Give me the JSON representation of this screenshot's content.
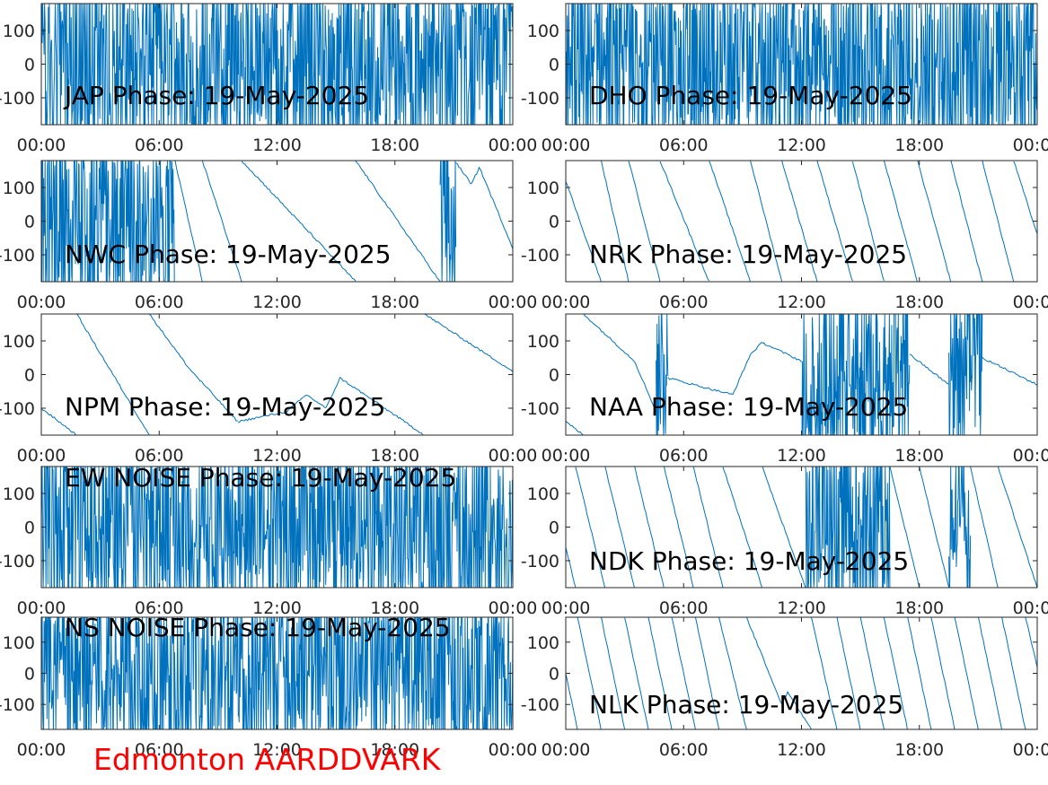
{
  "colors": {
    "line": "#0072bd",
    "axis": "#262626",
    "footer": "#ff0000"
  },
  "footer_label": "Edmonton AARDDVARK",
  "chart_data": [
    {
      "type": "line",
      "title": "JAP Phase: 19-May-2025",
      "xticks": [
        "00:00",
        "06:00",
        "12:00",
        "18:00",
        "00:00"
      ],
      "yticks": [
        "100",
        "0",
        "-100"
      ],
      "xlim": [
        0,
        24
      ],
      "ylim": [
        -180,
        180
      ],
      "segments": [
        {
          "x0": 0,
          "x1": 24,
          "mode": "noise",
          "y0": 0,
          "y1": 0,
          "amp": 180
        }
      ]
    },
    {
      "type": "line",
      "title": "DHO Phase: 19-May-2025",
      "xticks": [
        "00:00",
        "06:00",
        "12:00",
        "18:00",
        "00:00"
      ],
      "yticks": [
        "100",
        "0",
        "-100"
      ],
      "xlim": [
        0,
        24
      ],
      "ylim": [
        -180,
        180
      ],
      "segments": [
        {
          "x0": 0,
          "x1": 24,
          "mode": "noise",
          "y0": 0,
          "y1": 0,
          "amp": 180
        }
      ]
    },
    {
      "type": "line",
      "title": "NWC Phase: 19-May-2025",
      "xticks": [
        "00:00",
        "06:00",
        "12:00",
        "18:00",
        "00:00"
      ],
      "yticks": [
        "100",
        "0",
        "-100"
      ],
      "xlim": [
        0,
        24
      ],
      "ylim": [
        -180,
        180
      ],
      "segments": [
        {
          "x0": 0,
          "x1": 6.8,
          "mode": "noise",
          "y0": 0,
          "y1": 0,
          "amp": 180
        },
        {
          "x0": 6.8,
          "x1": 8.2,
          "mode": "line",
          "y0": 180,
          "y1": -180
        },
        {
          "x0": 8.2,
          "x1": 10.2,
          "mode": "line",
          "y0": 180,
          "y1": -180
        },
        {
          "x0": 10.2,
          "x1": 16.0,
          "mode": "line",
          "y0": 180,
          "y1": -180
        },
        {
          "x0": 16.0,
          "x1": 20.3,
          "mode": "line",
          "y0": 180,
          "y1": -180
        },
        {
          "x0": 20.3,
          "x1": 21.1,
          "mode": "noise",
          "y0": 0,
          "y1": 0,
          "amp": 180
        },
        {
          "x0": 21.1,
          "x1": 21.9,
          "mode": "line",
          "y0": 175,
          "y1": 110
        },
        {
          "x0": 21.9,
          "x1": 22.3,
          "mode": "line",
          "y0": 110,
          "y1": 160
        },
        {
          "x0": 22.3,
          "x1": 24,
          "mode": "line",
          "y0": 160,
          "y1": -80
        }
      ]
    },
    {
      "type": "line",
      "title": "NRK Phase: 19-May-2025",
      "xticks": [
        "00:00",
        "06:00",
        "12:00",
        "18:00",
        "00:00"
      ],
      "yticks": [
        "100",
        "0",
        "-100"
      ],
      "xlim": [
        0,
        24
      ],
      "ylim": [
        -180,
        180
      ],
      "segments": [
        {
          "x0": 0,
          "x1": 1.8,
          "mode": "line",
          "y0": 120,
          "y1": -180
        },
        {
          "x0": 1.8,
          "x1": 3.2,
          "mode": "line",
          "y0": 180,
          "y1": -180
        },
        {
          "x0": 3.2,
          "x1": 4.8,
          "mode": "line",
          "y0": 180,
          "y1": -180
        },
        {
          "x0": 4.8,
          "x1": 7.3,
          "mode": "line",
          "y0": 180,
          "y1": -180
        },
        {
          "x0": 7.3,
          "x1": 9.4,
          "mode": "line",
          "y0": 180,
          "y1": -180
        },
        {
          "x0": 9.4,
          "x1": 11.0,
          "mode": "line",
          "y0": 180,
          "y1": -180
        },
        {
          "x0": 11.0,
          "x1": 12.8,
          "mode": "line",
          "y0": 180,
          "y1": -180
        },
        {
          "x0": 12.8,
          "x1": 14.6,
          "mode": "line",
          "y0": 180,
          "y1": -180
        },
        {
          "x0": 14.6,
          "x1": 16.2,
          "mode": "line",
          "y0": 180,
          "y1": -180
        },
        {
          "x0": 16.2,
          "x1": 17.9,
          "mode": "line",
          "y0": 180,
          "y1": -180
        },
        {
          "x0": 17.9,
          "x1": 19.6,
          "mode": "line",
          "y0": 180,
          "y1": -180
        },
        {
          "x0": 19.6,
          "x1": 21.2,
          "mode": "line",
          "y0": 180,
          "y1": -180
        },
        {
          "x0": 21.2,
          "x1": 22.8,
          "mode": "line",
          "y0": 180,
          "y1": -180
        },
        {
          "x0": 22.8,
          "x1": 24,
          "mode": "line",
          "y0": 180,
          "y1": -40
        }
      ]
    },
    {
      "type": "line",
      "title": "NPM Phase: 19-May-2025",
      "xticks": [
        "00:00",
        "06:00",
        "12:00",
        "18:00",
        "00:00"
      ],
      "yticks": [
        "100",
        "0",
        "-100"
      ],
      "xlim": [
        0,
        24
      ],
      "ylim": [
        -180,
        180
      ],
      "segments": [
        {
          "x0": 0,
          "x1": 1.8,
          "mode": "line",
          "y0": -100,
          "y1": -180
        },
        {
          "x0": 1.8,
          "x1": 5.5,
          "mode": "line",
          "y0": 180,
          "y1": -180
        },
        {
          "x0": 5.5,
          "x1": 7.5,
          "mode": "line",
          "y0": 180,
          "y1": 20
        },
        {
          "x0": 7.5,
          "x1": 10.0,
          "mode": "line",
          "y0": 20,
          "y1": -140
        },
        {
          "x0": 10.0,
          "x1": 12.5,
          "mode": "line",
          "y0": -140,
          "y1": -110
        },
        {
          "x0": 12.5,
          "x1": 13.5,
          "mode": "line",
          "y0": -110,
          "y1": -60
        },
        {
          "x0": 13.5,
          "x1": 14.5,
          "mode": "line",
          "y0": -60,
          "y1": -100
        },
        {
          "x0": 14.5,
          "x1": 15.2,
          "mode": "line",
          "y0": -100,
          "y1": -10
        },
        {
          "x0": 15.2,
          "x1": 19.5,
          "mode": "line",
          "y0": -10,
          "y1": -180
        },
        {
          "x0": 19.5,
          "x1": 24,
          "mode": "line",
          "y0": 180,
          "y1": 10
        }
      ]
    },
    {
      "type": "line",
      "title": "NAA Phase: 19-May-2025",
      "xticks": [
        "00:00",
        "06:00",
        "12:00",
        "18:00",
        "00:00"
      ],
      "yticks": [
        "100",
        "0",
        "-100"
      ],
      "xlim": [
        0,
        24
      ],
      "ylim": [
        -180,
        180
      ],
      "segments": [
        {
          "x0": 0,
          "x1": 0.9,
          "mode": "line",
          "y0": -140,
          "y1": -180
        },
        {
          "x0": 0.9,
          "x1": 3.5,
          "mode": "line",
          "y0": 180,
          "y1": 40
        },
        {
          "x0": 3.5,
          "x1": 4.6,
          "mode": "line",
          "y0": 40,
          "y1": -110
        },
        {
          "x0": 4.6,
          "x1": 5.2,
          "mode": "noise",
          "y0": 0,
          "y1": 0,
          "amp": 180
        },
        {
          "x0": 5.2,
          "x1": 8.5,
          "mode": "line",
          "y0": -10,
          "y1": -60
        },
        {
          "x0": 8.5,
          "x1": 9.4,
          "mode": "line",
          "y0": -60,
          "y1": 60
        },
        {
          "x0": 9.4,
          "x1": 10.0,
          "mode": "line",
          "y0": 60,
          "y1": 95
        },
        {
          "x0": 10.0,
          "x1": 12.0,
          "mode": "line",
          "y0": 95,
          "y1": 40
        },
        {
          "x0": 12.0,
          "x1": 17.5,
          "mode": "noise",
          "y0": 0,
          "y1": 0,
          "amp": 180
        },
        {
          "x0": 17.5,
          "x1": 19.5,
          "mode": "line",
          "y0": 60,
          "y1": -30
        },
        {
          "x0": 19.5,
          "x1": 21.2,
          "mode": "noise",
          "y0": 0,
          "y1": 0,
          "amp": 180
        },
        {
          "x0": 21.2,
          "x1": 24,
          "mode": "line",
          "y0": 50,
          "y1": -30
        }
      ]
    },
    {
      "type": "line",
      "title": "EW NOISE Phase: 19-May-2025",
      "xticks": [
        "00:00",
        "06:00",
        "12:00",
        "18:00",
        "00:00"
      ],
      "yticks": [
        "100",
        "0",
        "-100"
      ],
      "xlim": [
        0,
        24
      ],
      "ylim": [
        -180,
        180
      ],
      "segments": [
        {
          "x0": 0,
          "x1": 24,
          "mode": "noise",
          "y0": 0,
          "y1": 0,
          "amp": 180
        }
      ]
    },
    {
      "type": "line",
      "title": "NDK Phase: 19-May-2025",
      "xticks": [
        "00:00",
        "06:00",
        "12:00",
        "18:00",
        "00:00"
      ],
      "yticks": [
        "100",
        "0",
        "-100"
      ],
      "xlim": [
        0,
        24
      ],
      "ylim": [
        -180,
        180
      ],
      "segments": [
        {
          "x0": 0,
          "x1": 0.5,
          "mode": "line",
          "y0": -60,
          "y1": -180
        },
        {
          "x0": 0.5,
          "x1": 2.0,
          "mode": "line",
          "y0": 180,
          "y1": -180
        },
        {
          "x0": 2.0,
          "x1": 3.5,
          "mode": "line",
          "y0": 180,
          "y1": -180
        },
        {
          "x0": 3.5,
          "x1": 5.0,
          "mode": "line",
          "y0": 180,
          "y1": -180
        },
        {
          "x0": 5.0,
          "x1": 6.5,
          "mode": "line",
          "y0": 180,
          "y1": -180
        },
        {
          "x0": 6.5,
          "x1": 8.0,
          "mode": "line",
          "y0": 180,
          "y1": -180
        },
        {
          "x0": 8.0,
          "x1": 10.0,
          "mode": "line",
          "y0": 180,
          "y1": -180
        },
        {
          "x0": 10.0,
          "x1": 12.2,
          "mode": "line",
          "y0": 180,
          "y1": -180
        },
        {
          "x0": 12.2,
          "x1": 16.5,
          "mode": "noise",
          "y0": 0,
          "y1": 0,
          "amp": 180
        },
        {
          "x0": 16.5,
          "x1": 18.0,
          "mode": "line",
          "y0": 180,
          "y1": -180
        },
        {
          "x0": 18.0,
          "x1": 19.5,
          "mode": "line",
          "y0": 180,
          "y1": -180
        },
        {
          "x0": 19.5,
          "x1": 20.6,
          "mode": "noise",
          "y0": 0,
          "y1": 0,
          "amp": 120
        },
        {
          "x0": 20.6,
          "x1": 22.0,
          "mode": "line",
          "y0": 180,
          "y1": -180
        },
        {
          "x0": 22.0,
          "x1": 24,
          "mode": "line",
          "y0": 180,
          "y1": -180
        }
      ]
    },
    {
      "type": "line",
      "title": "NS NOISE Phase: 19-May-2025",
      "xticks": [
        "00:00",
        "06:00",
        "12:00",
        "18:00",
        "00:00"
      ],
      "yticks": [
        "100",
        "0",
        "-100"
      ],
      "xlim": [
        0,
        24
      ],
      "ylim": [
        -180,
        180
      ],
      "segments": [
        {
          "x0": 0,
          "x1": 24,
          "mode": "noise",
          "y0": 0,
          "y1": 0,
          "amp": 180
        }
      ]
    },
    {
      "type": "line",
      "title": "NLK Phase: 19-May-2025",
      "xticks": [
        "00:00",
        "06:00",
        "12:00",
        "18:00",
        "00:00"
      ],
      "yticks": [
        "100",
        "0",
        "-100"
      ],
      "xlim": [
        0,
        24
      ],
      "ylim": [
        -180,
        180
      ],
      "segments": [
        {
          "x0": 0,
          "x1": 0.6,
          "mode": "line",
          "y0": 0,
          "y1": -180
        },
        {
          "x0": 0.6,
          "x1": 1.8,
          "mode": "line",
          "y0": 180,
          "y1": -180
        },
        {
          "x0": 1.8,
          "x1": 3.0,
          "mode": "line",
          "y0": 180,
          "y1": -180
        },
        {
          "x0": 3.0,
          "x1": 4.2,
          "mode": "line",
          "y0": 180,
          "y1": -180
        },
        {
          "x0": 4.2,
          "x1": 5.4,
          "mode": "line",
          "y0": 180,
          "y1": -180
        },
        {
          "x0": 5.4,
          "x1": 6.6,
          "mode": "line",
          "y0": 180,
          "y1": -180
        },
        {
          "x0": 6.6,
          "x1": 7.8,
          "mode": "line",
          "y0": 180,
          "y1": -180
        },
        {
          "x0": 7.8,
          "x1": 9.2,
          "mode": "line",
          "y0": 180,
          "y1": -180
        },
        {
          "x0": 9.2,
          "x1": 11.0,
          "mode": "line",
          "y0": 180,
          "y1": -100
        },
        {
          "x0": 11.0,
          "x1": 11.3,
          "mode": "line",
          "y0": -100,
          "y1": -60
        },
        {
          "x0": 11.3,
          "x1": 12.5,
          "mode": "line",
          "y0": -60,
          "y1": -180
        },
        {
          "x0": 12.5,
          "x1": 13.8,
          "mode": "line",
          "y0": 180,
          "y1": -180
        },
        {
          "x0": 13.8,
          "x1": 15.0,
          "mode": "line",
          "y0": 180,
          "y1": -180
        },
        {
          "x0": 15.0,
          "x1": 16.2,
          "mode": "line",
          "y0": 180,
          "y1": -180
        },
        {
          "x0": 16.2,
          "x1": 17.4,
          "mode": "line",
          "y0": 180,
          "y1": -180
        },
        {
          "x0": 17.4,
          "x1": 18.6,
          "mode": "line",
          "y0": 180,
          "y1": -180
        },
        {
          "x0": 18.6,
          "x1": 19.8,
          "mode": "line",
          "y0": 180,
          "y1": -180
        },
        {
          "x0": 19.8,
          "x1": 21.0,
          "mode": "line",
          "y0": 180,
          "y1": -180
        },
        {
          "x0": 21.0,
          "x1": 22.2,
          "mode": "line",
          "y0": 180,
          "y1": -180
        },
        {
          "x0": 22.2,
          "x1": 23.4,
          "mode": "line",
          "y0": 180,
          "y1": -180
        },
        {
          "x0": 23.4,
          "x1": 24,
          "mode": "line",
          "y0": 180,
          "y1": 20
        }
      ]
    }
  ]
}
